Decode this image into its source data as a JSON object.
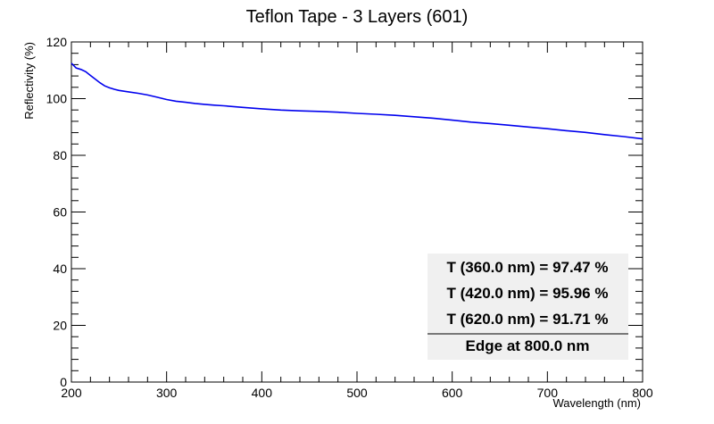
{
  "chart_data": {
    "type": "line",
    "title": "Teflon Tape - 3 Layers (601)",
    "xlabel": "Wavelength (nm)",
    "ylabel": "Reflectivity (%)",
    "xlim": [
      200,
      800
    ],
    "ylim": [
      0,
      120
    ],
    "x_ticks": [
      "200",
      "300",
      "400",
      "500",
      "600",
      "700",
      "800"
    ],
    "y_ticks": [
      "0",
      "20",
      "40",
      "60",
      "80",
      "100",
      "120"
    ],
    "grid": false,
    "series": [
      {
        "color": "#0000ee",
        "x": [
          200,
          205,
          210,
          215,
          220,
          225,
          230,
          235,
          240,
          245,
          250,
          260,
          270,
          280,
          290,
          300,
          310,
          320,
          330,
          340,
          350,
          360,
          380,
          400,
          420,
          440,
          460,
          480,
          500,
          520,
          540,
          560,
          580,
          600,
          620,
          640,
          660,
          680,
          700,
          720,
          740,
          760,
          780,
          800
        ],
        "y": [
          112.5,
          110.8,
          110.3,
          109.5,
          108.2,
          106.9,
          105.6,
          104.5,
          103.8,
          103.3,
          102.9,
          102.4,
          101.9,
          101.3,
          100.5,
          99.7,
          99.1,
          98.7,
          98.3,
          98.0,
          97.7,
          97.47,
          96.9,
          96.4,
          95.96,
          95.7,
          95.5,
          95.2,
          94.8,
          94.5,
          94.1,
          93.6,
          93.1,
          92.4,
          91.71,
          91.2,
          90.6,
          90.0,
          89.4,
          88.7,
          88.1,
          87.3,
          86.6,
          85.8
        ]
      }
    ],
    "stats": {
      "lines": [
        "T (360.0 nm) = 97.47 %",
        "T (420.0 nm) = 95.96 %",
        "T (620.0 nm) = 91.71 %"
      ],
      "edge": "Edge at 800.0 nm"
    }
  }
}
